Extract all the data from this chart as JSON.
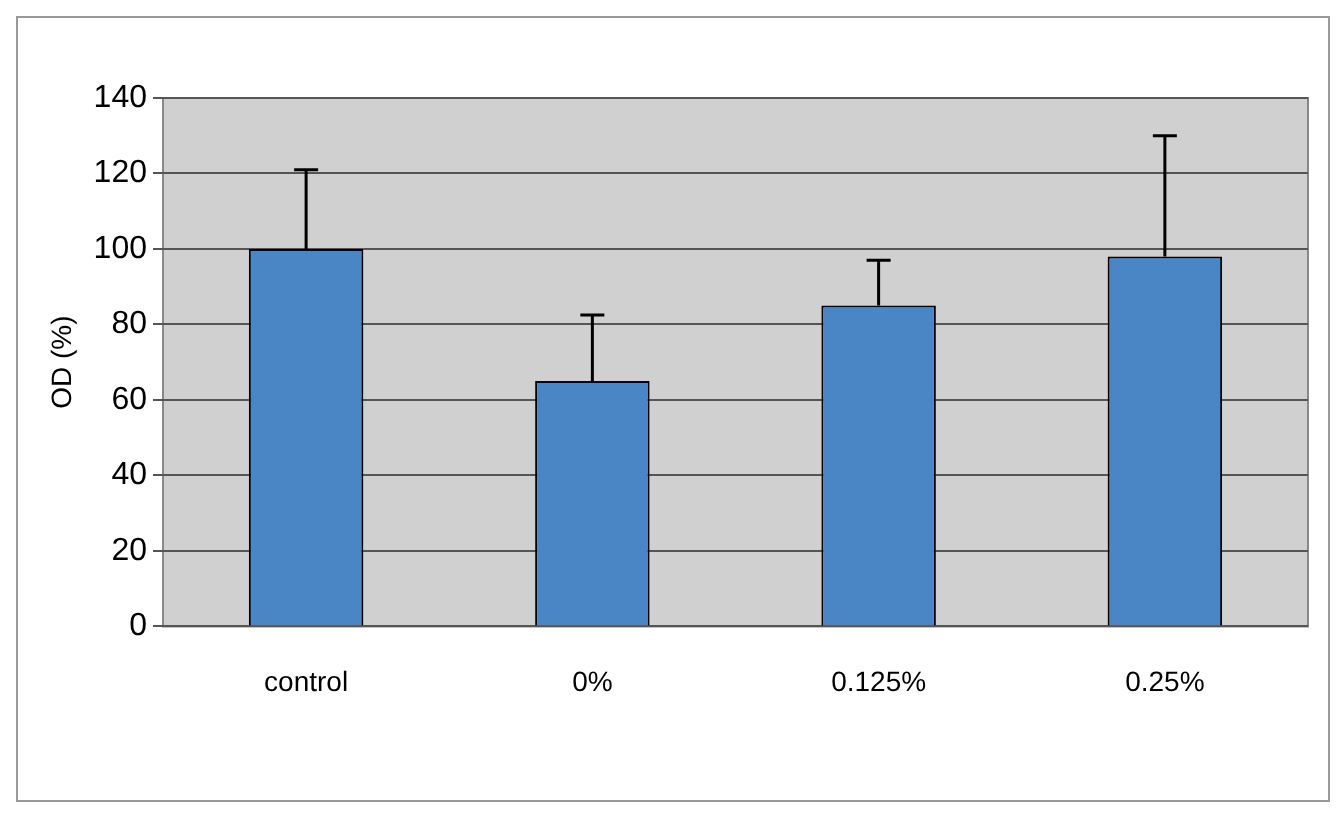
{
  "chart_data": {
    "type": "bar",
    "ylabel": "OD (%)",
    "categories": [
      "control",
      "0%",
      "0.125%",
      "0.25%"
    ],
    "values": [
      100,
      65,
      85,
      98
    ],
    "errors": [
      [
        100,
        121
      ],
      [
        65,
        82.5
      ],
      [
        85,
        97
      ],
      [
        98,
        130
      ]
    ],
    "color": "#4a86c5",
    "ylim": [
      0,
      140
    ],
    "yticks": [
      0,
      20,
      40,
      60,
      80,
      100,
      120,
      140
    ],
    "grid": "y",
    "legend": false
  }
}
